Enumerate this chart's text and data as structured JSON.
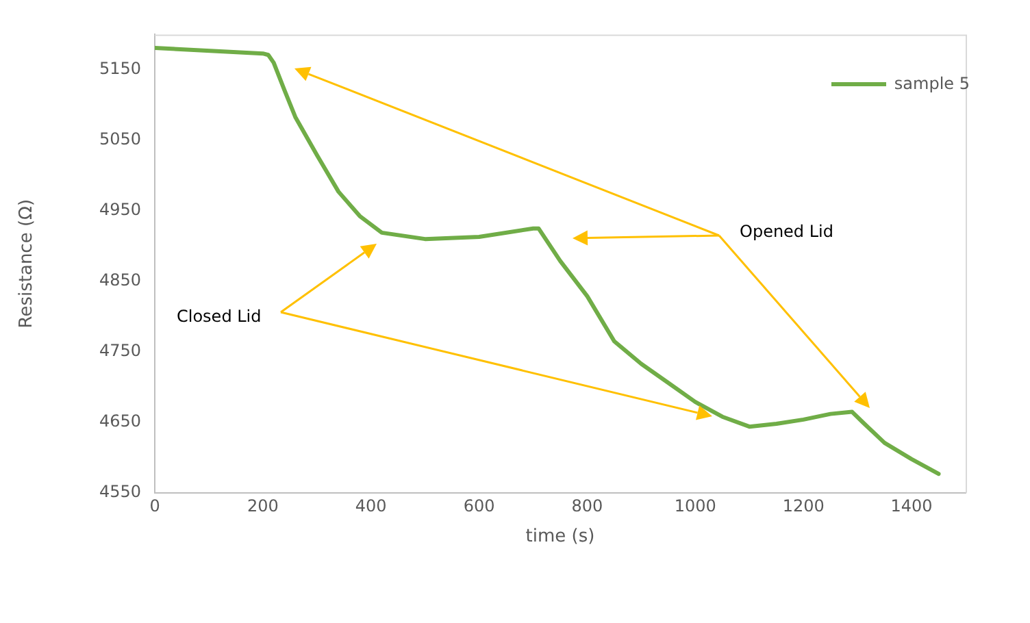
{
  "chart_data": {
    "type": "line",
    "xlabel": "time (s)",
    "ylabel": "Resistance (Ω)",
    "annotations": [
      "Opened Lid",
      "Closed Lid"
    ],
    "xlim": [
      0,
      1500
    ],
    "xticks": [
      0,
      200,
      400,
      600,
      800,
      1000,
      1200,
      1400
    ],
    "ylim": [
      4550,
      5200
    ],
    "yticks": [
      4550,
      4650,
      4750,
      4850,
      4950,
      5050,
      5150
    ],
    "grid": false,
    "legend": "top right",
    "marker": "none",
    "line_style": "solid",
    "series": [
      {
        "name": "sample 5",
        "color": "#70ad47",
        "x": [
          0,
          200,
          210,
          220,
          240,
          260,
          300,
          340,
          380,
          420,
          500,
          600,
          700,
          710,
          750,
          800,
          850,
          900,
          950,
          1000,
          1050,
          1100,
          1150,
          1200,
          1250,
          1290,
          1310,
          1350,
          1400,
          1450
        ],
        "values": [
          5181,
          5173,
          5171,
          5160,
          5121,
          5083,
          5029,
          4977,
          4942,
          4919,
          4910,
          4913,
          4925,
          4925,
          4879,
          4829,
          4765,
          4733,
          4706,
          4679,
          4658,
          4644,
          4648,
          4654,
          4662,
          4665,
          4650,
          4621,
          4598,
          4577
        ]
      }
    ]
  }
}
